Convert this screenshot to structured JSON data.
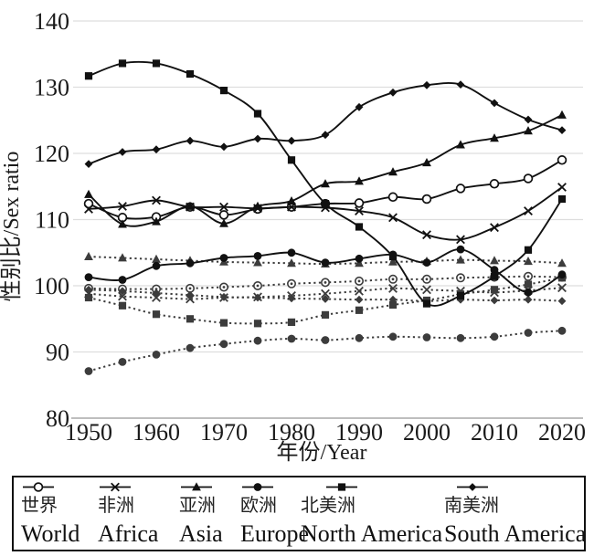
{
  "page": {
    "background": "#ffffff"
  },
  "colors": {
    "solid_line": "#111111",
    "dotted_line": "#3c3c3c",
    "gridline": "#dedede",
    "axis_line": "#a8a8a8",
    "text": "#1a1a1a",
    "legend_border": "#111111"
  },
  "axes": {
    "y_label": "性别比/Sex ratio",
    "x_label": "年份/Year"
  },
  "legend": {
    "entries": [
      {
        "zh": "世界",
        "en": "World",
        "marker": "circle-open"
      },
      {
        "zh": "非洲",
        "en": "Africa",
        "marker": "x"
      },
      {
        "zh": "亚洲",
        "en": "Asia",
        "marker": "triangle"
      },
      {
        "zh": "欧洲",
        "en": "Europe",
        "marker": "circle"
      },
      {
        "zh": "北美洲",
        "en": "North America",
        "marker": "square"
      },
      {
        "zh": "南美洲",
        "en": "South America",
        "marker": "diamond"
      }
    ]
  },
  "chart_data": {
    "type": "line",
    "title": "",
    "xlabel": "年份/Year",
    "ylabel": "性别比/Sex ratio",
    "xlim": [
      1950,
      2020
    ],
    "ylim": [
      80,
      140
    ],
    "x_ticks": [
      1950,
      1960,
      1970,
      1980,
      1990,
      2000,
      2010,
      2020
    ],
    "y_ticks": [
      80,
      90,
      100,
      110,
      120,
      130,
      140
    ],
    "grid": "horizontal",
    "legend_position": "bottom-box",
    "x": [
      1950,
      1955,
      1960,
      1965,
      1970,
      1975,
      1980,
      1985,
      1990,
      1995,
      2000,
      2005,
      2010,
      2015,
      2020
    ],
    "series": [
      {
        "name": "World (solid)",
        "continent_zh": "世界",
        "continent_en": "World",
        "marker": "circle-open",
        "style": "solid",
        "values": [
          112.4,
          110.3,
          110.4,
          111.9,
          110.7,
          111.6,
          111.9,
          112.4,
          112.5,
          113.4,
          113.1,
          114.7,
          115.4,
          116.2,
          119.0
        ]
      },
      {
        "name": "Africa (solid)",
        "continent_zh": "非洲",
        "continent_en": "Africa",
        "marker": "x",
        "style": "solid",
        "values": [
          111.6,
          112.0,
          112.9,
          111.9,
          111.9,
          111.7,
          111.9,
          111.8,
          111.3,
          110.3,
          107.7,
          107.0,
          108.8,
          111.3,
          114.9
        ]
      },
      {
        "name": "Asia (solid)",
        "continent_zh": "亚洲",
        "continent_en": "Asia",
        "marker": "triangle",
        "style": "solid",
        "values": [
          113.8,
          109.3,
          109.7,
          112.0,
          109.4,
          112.0,
          112.8,
          115.4,
          115.8,
          117.2,
          118.6,
          121.3,
          122.3,
          123.4,
          125.8
        ]
      },
      {
        "name": "Europe (solid)",
        "continent_zh": "欧洲",
        "continent_en": "Europe",
        "marker": "circle",
        "style": "solid",
        "values": [
          101.3,
          100.9,
          103.0,
          103.4,
          104.2,
          104.5,
          105.0,
          103.5,
          104.1,
          104.7,
          103.5,
          105.5,
          102.4,
          99.0,
          101.7
        ]
      },
      {
        "name": "North America (solid)",
        "continent_zh": "北美洲",
        "continent_en": "North America",
        "marker": "square",
        "style": "solid",
        "values": [
          131.7,
          133.6,
          133.6,
          132.0,
          129.5,
          126.0,
          119.0,
          112.4,
          108.9,
          104.4,
          97.3,
          98.5,
          101.4,
          105.4,
          113.1
        ]
      },
      {
        "name": "South America (solid)",
        "continent_zh": "南美洲",
        "continent_en": "South America",
        "marker": "diamond",
        "style": "solid",
        "values": [
          118.4,
          120.2,
          120.6,
          121.9,
          121.0,
          122.2,
          121.9,
          122.8,
          127.0,
          129.2,
          130.3,
          130.4,
          127.6,
          125.1,
          123.5
        ]
      },
      {
        "name": "World (dotted)",
        "continent_zh": "世界",
        "continent_en": "World",
        "marker": "circle-dot",
        "style": "dotted",
        "values": [
          99.6,
          99.5,
          99.5,
          99.6,
          99.8,
          100.0,
          100.3,
          100.5,
          100.7,
          101.0,
          101.0,
          101.2,
          101.3,
          101.4,
          101.3
        ]
      },
      {
        "name": "Africa (dotted)",
        "continent_zh": "非洲",
        "continent_en": "Africa",
        "marker": "x",
        "style": "dotted",
        "values": [
          98.8,
          98.4,
          98.2,
          98.0,
          98.2,
          98.3,
          98.5,
          98.8,
          99.2,
          99.6,
          99.4,
          99.2,
          99.0,
          99.3,
          99.7
        ]
      },
      {
        "name": "Asia (dotted)",
        "continent_zh": "亚洲",
        "continent_en": "Asia",
        "marker": "triangle",
        "style": "dotted",
        "values": [
          104.4,
          104.2,
          104.0,
          103.8,
          103.6,
          103.5,
          103.4,
          103.3,
          103.4,
          103.6,
          103.7,
          103.9,
          103.8,
          103.7,
          103.4
        ]
      },
      {
        "name": "Europe (dotted)",
        "continent_zh": "欧洲",
        "continent_en": "Europe",
        "marker": "circle",
        "style": "dotted",
        "values": [
          87.1,
          88.5,
          89.6,
          90.6,
          91.2,
          91.7,
          92.0,
          91.8,
          92.1,
          92.3,
          92.2,
          92.1,
          92.3,
          92.9,
          93.2
        ]
      },
      {
        "name": "North America (dotted)",
        "continent_zh": "北美洲",
        "continent_en": "North America",
        "marker": "square",
        "style": "dotted",
        "values": [
          98.2,
          97.0,
          95.7,
          95.0,
          94.4,
          94.3,
          94.5,
          95.6,
          96.3,
          97.1,
          97.8,
          98.7,
          99.4,
          100.2,
          101.2
        ]
      },
      {
        "name": "South America (dotted)",
        "continent_zh": "南美洲",
        "continent_en": "South America",
        "marker": "diamond",
        "style": "dotted",
        "values": [
          99.4,
          99.2,
          98.9,
          98.6,
          98.3,
          98.2,
          98.1,
          98.0,
          97.9,
          97.9,
          97.7,
          97.9,
          97.8,
          97.9,
          97.7
        ]
      }
    ]
  }
}
